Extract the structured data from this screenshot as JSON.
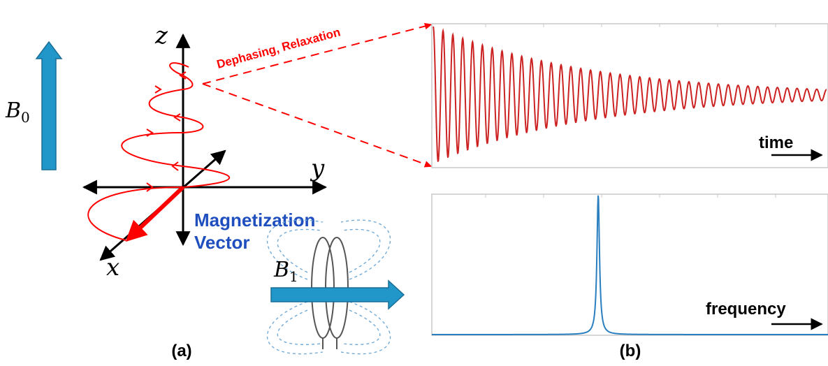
{
  "panel_a": {
    "b0_label": "B",
    "b0_subscript": "0",
    "axis_z": "z",
    "axis_y": "y",
    "axis_x": "x",
    "dephasing_label": "Dephasing, Relaxation",
    "magnetization_line1": "Magnetization",
    "magnetization_line2": "Vector",
    "b1_label": "B",
    "b1_subscript": "1",
    "caption": "(a)"
  },
  "panel_b": {
    "time_label": "time",
    "frequency_label": "frequency",
    "caption": "(b)"
  },
  "colors": {
    "field_arrow": "#2196c8",
    "spiral": "#ff0000",
    "fid": "#cc2222",
    "spectrum": "#2a7fbf",
    "magnetization_text": "#1f4fbf",
    "axes": "#000000"
  },
  "chart_data": [
    {
      "type": "line",
      "description_kind": "free induction decay",
      "xlabel": "time",
      "ylabel": "",
      "oscillation_count": 40,
      "initial_amplitude": 1.0,
      "decay": "exponential",
      "final_amplitude": 0.08
    },
    {
      "type": "line",
      "xlabel": "frequency",
      "ylabel": "",
      "peak_position_fraction": 0.42,
      "peak_height": 1.0,
      "lineshape": "lorentzian"
    }
  ]
}
